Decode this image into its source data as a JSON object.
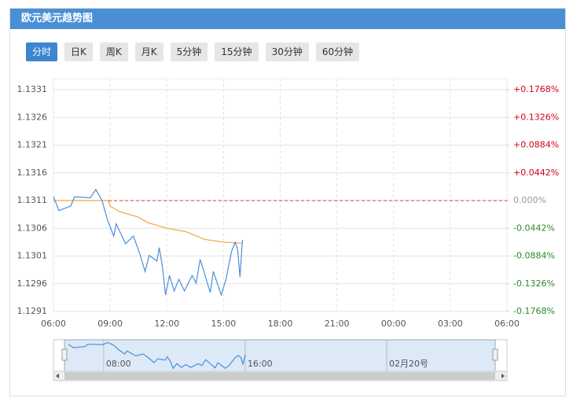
{
  "header": {
    "title": "欧元美元趋势图"
  },
  "tabs": [
    "分时",
    "日K",
    "周K",
    "月K",
    "5分钟",
    "15分钟",
    "30分钟",
    "60分钟"
  ],
  "active_tab": 0,
  "chart_data": {
    "type": "line",
    "xlim": [
      0,
      24
    ],
    "xticks": [
      {
        "value": 0,
        "label": "06:00"
      },
      {
        "value": 3,
        "label": "09:00"
      },
      {
        "value": 6,
        "label": "12:00"
      },
      {
        "value": 9,
        "label": "15:00"
      },
      {
        "value": 12,
        "label": "18:00"
      },
      {
        "value": 15,
        "label": "21:00"
      },
      {
        "value": 18,
        "label": "00:00"
      },
      {
        "value": 21,
        "label": "03:00"
      },
      {
        "value": 24,
        "label": "06:00"
      }
    ],
    "ylim": [
      1.1291,
      1.1331
    ],
    "yticks": [
      1.1331,
      1.1326,
      1.1321,
      1.1316,
      1.1311,
      1.1306,
      1.1301,
      1.1296,
      1.1291
    ],
    "y2lim": [
      -0.1768,
      0.1768
    ],
    "y2ticks": [
      {
        "value": 0.1768,
        "label": "+0.1768%"
      },
      {
        "value": 0.1326,
        "label": "+0.1326%"
      },
      {
        "value": 0.0884,
        "label": "+0.0884%"
      },
      {
        "value": 0.0442,
        "label": "+0.0442%"
      },
      {
        "value": 0,
        "label": "0.000%"
      },
      {
        "value": -0.0442,
        "label": "-0.0442%"
      },
      {
        "value": -0.0884,
        "label": "-0.0884%"
      },
      {
        "value": -0.1326,
        "label": "-0.1326%"
      },
      {
        "value": -0.1768,
        "label": "-0.1768%"
      }
    ],
    "ref_line": 1.1311,
    "ref_color": "#d9363e",
    "grid": true,
    "series": [
      {
        "color": "#4a90d9",
        "x": [
          0,
          0.29,
          0.91,
          1.12,
          1.95,
          2.24,
          2.57,
          2.86,
          3.19,
          3.32,
          3.82,
          4.23,
          4.56,
          4.85,
          5.06,
          5.48,
          5.6,
          5.77,
          5.93,
          6.14,
          6.39,
          6.64,
          6.93,
          7.34,
          7.55,
          7.76,
          7.96,
          8.3,
          8.46,
          8.88,
          9.13,
          9.42,
          9.62,
          9.75,
          9.87,
          10.0
        ],
        "values": [
          1.13117,
          1.13092,
          1.131,
          1.13117,
          1.13115,
          1.1313,
          1.1311,
          1.13075,
          1.13046,
          1.13068,
          1.13032,
          1.13046,
          1.13015,
          1.12982,
          1.13011,
          1.13001,
          1.13025,
          1.1299,
          1.1294,
          1.12975,
          1.12947,
          1.12968,
          1.12947,
          1.12975,
          1.12961,
          1.13004,
          1.12982,
          1.12944,
          1.12982,
          1.1294,
          1.12968,
          1.13018,
          1.13035,
          1.13021,
          1.12972,
          1.13039
        ]
      },
      {
        "color": "#f0a640",
        "x": [
          0,
          2.9,
          3.0,
          3.5,
          4.5,
          5.0,
          6.0,
          7.0,
          8.0,
          9.0,
          10.0
        ],
        "values": [
          1.1311,
          1.1311,
          1.131,
          1.1309,
          1.1308,
          1.1307,
          1.1306,
          1.13054,
          1.1304,
          1.13035,
          1.13033
        ]
      }
    ],
    "navigator": {
      "xlim": [
        -0.84,
        24.8
      ],
      "ylim": [
        1.1285,
        1.1315
      ],
      "xticks": [
        {
          "value": 2,
          "label": "08:00"
        },
        {
          "value": 10,
          "label": "16:00"
        },
        {
          "value": 18,
          "label": "02月20号"
        }
      ]
    }
  }
}
